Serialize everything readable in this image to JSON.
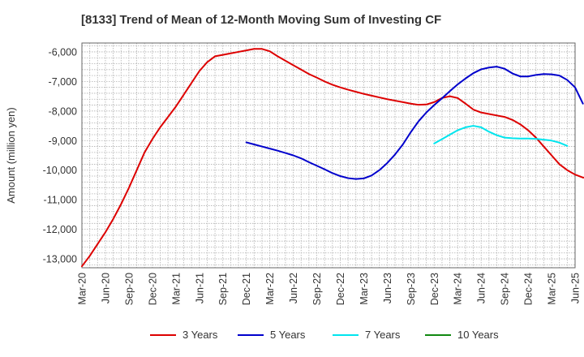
{
  "title": "[8133]  Trend of Mean of 12-Month Moving Sum of Investing CF",
  "chart_data": {
    "type": "line",
    "title": "[8133]  Trend of Mean of 12-Month Moving Sum of Investing CF",
    "xlabel": "",
    "ylabel": "Amount (million yen)",
    "x_ticks": [
      "Mar-20",
      "Jun-20",
      "Sep-20",
      "Dec-20",
      "Mar-21",
      "Jun-21",
      "Sep-21",
      "Dec-21",
      "Mar-22",
      "Jun-22",
      "Sep-22",
      "Dec-22",
      "Mar-23",
      "Jun-23",
      "Sep-23",
      "Dec-23",
      "Mar-24",
      "Jun-24",
      "Sep-24",
      "Dec-24",
      "Mar-25",
      "Jun-25"
    ],
    "y_ticks": [
      "-6,000",
      "-7,000",
      "-8,000",
      "-9,000",
      "-10,000",
      "-11,000",
      "-12,000",
      "-13,000"
    ],
    "y_tick_values": [
      -6000,
      -7000,
      -8000,
      -9000,
      -10000,
      -11000,
      -12000,
      -13000
    ],
    "ylim": [
      -13300,
      -5700
    ],
    "grid": true,
    "legend_position": "bottom",
    "x_start": "Mar-20",
    "series": [
      {
        "name": "3 Years",
        "color": "#dd0000",
        "start": "Mar-20",
        "values": [
          -13250,
          -12900,
          -12500,
          -12100,
          -11650,
          -11150,
          -10600,
          -10000,
          -9400,
          -8950,
          -8550,
          -8200,
          -7850,
          -7450,
          -7050,
          -6650,
          -6350,
          -6150,
          -6100,
          -6050,
          -6000,
          -5950,
          -5900,
          -5900,
          -5980,
          -6150,
          -6300,
          -6450,
          -6600,
          -6750,
          -6870,
          -7000,
          -7110,
          -7200,
          -7280,
          -7350,
          -7420,
          -7480,
          -7540,
          -7600,
          -7650,
          -7700,
          -7750,
          -7790,
          -7780,
          -7700,
          -7560,
          -7500,
          -7560,
          -7750,
          -7950,
          -8050,
          -8100,
          -8150,
          -8200,
          -8300,
          -8450,
          -8650,
          -8900,
          -9200,
          -9500,
          -9800,
          -10000,
          -10150,
          -10250,
          -10250,
          -10200,
          -10100,
          -10100,
          -10200,
          -10450
        ]
      },
      {
        "name": "5 Years",
        "color": "#0000cc",
        "start": "Dec-21",
        "values": [
          -9060,
          -9130,
          -9200,
          -9270,
          -9340,
          -9420,
          -9500,
          -9600,
          -9730,
          -9850,
          -9970,
          -10100,
          -10200,
          -10270,
          -10300,
          -10280,
          -10180,
          -10000,
          -9760,
          -9470,
          -9130,
          -8720,
          -8350,
          -8050,
          -7800,
          -7570,
          -7330,
          -7100,
          -6900,
          -6720,
          -6590,
          -6530,
          -6500,
          -6570,
          -6730,
          -6830,
          -6830,
          -6780,
          -6750,
          -6760,
          -6800,
          -6950,
          -7200,
          -7750
        ]
      },
      {
        "name": "7 Years",
        "color": "#00e5ee",
        "start": "Dec-23",
        "values": [
          -9100,
          -8950,
          -8800,
          -8650,
          -8550,
          -8500,
          -8550,
          -8700,
          -8820,
          -8900,
          -8920,
          -8930,
          -8930,
          -8940,
          -8970,
          -9000,
          -9070,
          -9180
        ]
      },
      {
        "name": "10 Years",
        "color": "#118811",
        "start": "Mar-25",
        "values": []
      }
    ]
  }
}
